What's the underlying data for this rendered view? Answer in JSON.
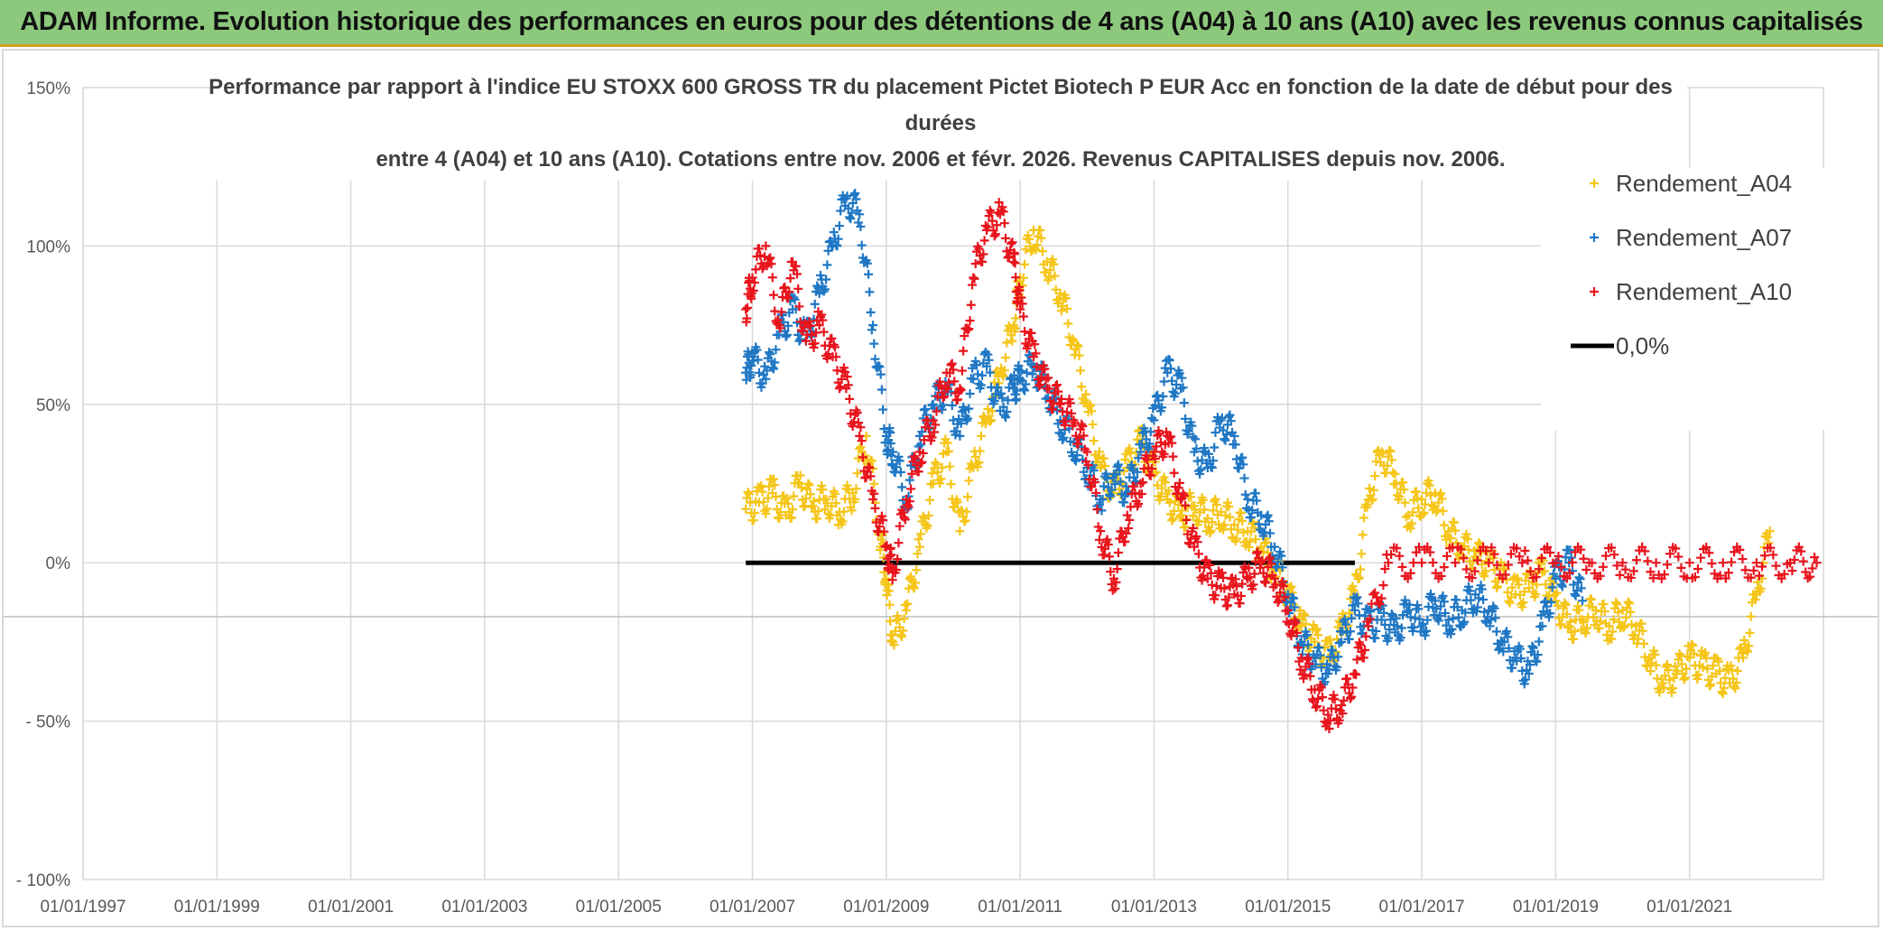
{
  "banner": {
    "title": "ADAM Informe. Evolution historique des performances en euros pour des détentions de 4 ans (A04) à 10 ans (A10) avec les revenus connus capitalisés"
  },
  "chart_data": {
    "type": "scatter",
    "title_lines": [
      "Performance par rapport à l'indice EU STOXX 600 GROSS TR  du placement Pictet Biotech P EUR Acc en fonction de la date de début pour des",
      "durées",
      "entre 4 (A04) et 10 ans (A10). Cotations entre nov. 2006 et févr. 2026. Revenus CAPITALISES depuis nov. 2006."
    ],
    "xlim": [
      1997.0,
      2023.0
    ],
    "ylim": [
      -100,
      150
    ],
    "y_ticks": [
      {
        "value": 150,
        "label": "150%"
      },
      {
        "value": 100,
        "label": "100%"
      },
      {
        "value": 50,
        "label": "50%"
      },
      {
        "value": 0,
        "label": "0%"
      },
      {
        "value": -50,
        "label": "- 50%"
      },
      {
        "value": -100,
        "label": "- 100%"
      }
    ],
    "x_ticks": [
      {
        "value": 1997,
        "label": "01/01/1997"
      },
      {
        "value": 1999,
        "label": "01/01/1999"
      },
      {
        "value": 2001,
        "label": "01/01/2001"
      },
      {
        "value": 2003,
        "label": "01/01/2003"
      },
      {
        "value": 2005,
        "label": "01/01/2005"
      },
      {
        "value": 2007,
        "label": "01/01/2007"
      },
      {
        "value": 2009,
        "label": "01/01/2009"
      },
      {
        "value": 2011,
        "label": "01/01/2011"
      },
      {
        "value": 2013,
        "label": "01/01/2013"
      },
      {
        "value": 2015,
        "label": "01/01/2015"
      },
      {
        "value": 2017,
        "label": "01/01/2017"
      },
      {
        "value": 2019,
        "label": "01/01/2019"
      },
      {
        "value": 2021,
        "label": "01/01/2021"
      }
    ],
    "grid": true,
    "legend_position": "top-right",
    "series": [
      {
        "name": "Rendement_A04",
        "color": "#f5c518",
        "marker": "+",
        "x": [
          2006.9,
          2007.1,
          2007.3,
          2007.5,
          2007.7,
          2007.9,
          2008.1,
          2008.3,
          2008.5,
          2008.7,
          2008.9,
          2009.0,
          2009.1,
          2009.3,
          2009.5,
          2009.7,
          2009.9,
          2010.1,
          2010.3,
          2010.5,
          2010.7,
          2010.9,
          2011.0,
          2011.2,
          2011.4,
          2011.6,
          2011.8,
          2012.0,
          2012.2,
          2012.4,
          2012.6,
          2012.8,
          2013.0,
          2013.2,
          2013.4,
          2013.6,
          2013.8,
          2014.0,
          2014.2,
          2014.4,
          2014.6,
          2014.8,
          2015.0,
          2015.2,
          2015.4,
          2015.6,
          2015.8,
          2016.0,
          2016.2,
          2016.4,
          2016.6,
          2016.8,
          2017.0,
          2017.2,
          2017.4,
          2017.6,
          2017.8,
          2018.0,
          2018.2,
          2018.4,
          2018.6,
          2018.8,
          2019.0,
          2019.2,
          2019.4,
          2019.6,
          2019.8,
          2020.0,
          2020.2,
          2020.4,
          2020.6,
          2020.8,
          2021.0,
          2021.2,
          2021.4,
          2021.6,
          2021.8,
          2022.0,
          2022.2
        ],
        "y": [
          17,
          19,
          22,
          15,
          25,
          18,
          20,
          16,
          22,
          40,
          10,
          -5,
          -25,
          -15,
          5,
          25,
          35,
          10,
          30,
          45,
          60,
          75,
          90,
          105,
          95,
          85,
          70,
          50,
          30,
          22,
          30,
          38,
          28,
          20,
          15,
          18,
          14,
          16,
          12,
          10,
          5,
          -2,
          -10,
          -20,
          -25,
          -30,
          -22,
          -10,
          20,
          35,
          28,
          15,
          20,
          22,
          10,
          5,
          2,
          0,
          -5,
          -10,
          -8,
          -3,
          -12,
          -20,
          -18,
          -15,
          -20,
          -15,
          -20,
          -30,
          -38,
          -35,
          -30,
          -33,
          -35,
          -38,
          -30,
          -10,
          10
        ]
      },
      {
        "name": "Rendement_A07",
        "color": "#1f77c4",
        "marker": "+",
        "x": [
          2006.9,
          2007.0,
          2007.2,
          2007.4,
          2007.6,
          2007.8,
          2008.0,
          2008.2,
          2008.4,
          2008.6,
          2008.8,
          2009.0,
          2009.1,
          2009.3,
          2009.5,
          2009.7,
          2009.9,
          2010.1,
          2010.3,
          2010.5,
          2010.7,
          2010.9,
          2011.0,
          2011.2,
          2011.4,
          2011.6,
          2011.8,
          2012.0,
          2012.2,
          2012.4,
          2012.6,
          2012.8,
          2013.0,
          2013.2,
          2013.4,
          2013.6,
          2013.8,
          2014.0,
          2014.2,
          2014.4,
          2014.6,
          2014.8,
          2015.0,
          2015.2,
          2015.4,
          2015.6,
          2015.8,
          2016.0,
          2016.2,
          2016.4,
          2016.6,
          2016.8,
          2017.0,
          2017.2,
          2017.4,
          2017.6,
          2017.8,
          2018.0,
          2018.2,
          2018.4,
          2018.6,
          2018.8,
          2019.0,
          2019.2,
          2019.4
        ],
        "y": [
          60,
          65,
          58,
          72,
          80,
          70,
          85,
          100,
          115,
          110,
          75,
          40,
          35,
          20,
          40,
          50,
          55,
          40,
          58,
          62,
          48,
          55,
          58,
          62,
          55,
          45,
          38,
          30,
          20,
          28,
          22,
          35,
          45,
          60,
          55,
          35,
          30,
          45,
          40,
          20,
          15,
          5,
          -10,
          -25,
          -30,
          -35,
          -25,
          -15,
          -20,
          -18,
          -22,
          -15,
          -20,
          -12,
          -18,
          -15,
          -10,
          -15,
          -25,
          -30,
          -35,
          -20,
          -5,
          0,
          -12
        ]
      },
      {
        "name": "Rendement_A10",
        "color": "#e8141c",
        "marker": "+",
        "x": [
          2006.9,
          2007.0,
          2007.2,
          2007.4,
          2007.6,
          2007.8,
          2008.0,
          2008.2,
          2008.4,
          2008.6,
          2008.8,
          2009.0,
          2009.1,
          2009.3,
          2009.5,
          2009.7,
          2009.9,
          2010.1,
          2010.3,
          2010.5,
          2010.7,
          2010.9,
          2011.0,
          2011.2,
          2011.4,
          2011.6,
          2011.8,
          2012.0,
          2012.2,
          2012.4,
          2012.6,
          2012.8,
          2013.0,
          2013.2,
          2013.4,
          2013.6,
          2013.8,
          2014.0,
          2014.2,
          2014.4,
          2014.6,
          2014.8,
          2015.0,
          2015.2,
          2015.4,
          2015.6,
          2015.8,
          2016.0,
          2016.2,
          2016.5,
          2017.0,
          2017.5,
          2018.0,
          2018.5,
          2019.0,
          2019.5,
          2020.0,
          2020.5,
          2021.0,
          2021.5,
          2022.0,
          2022.5,
          2022.9
        ],
        "y": [
          80,
          90,
          100,
          75,
          95,
          70,
          75,
          65,
          55,
          40,
          20,
          5,
          -3,
          20,
          35,
          45,
          60,
          55,
          90,
          105,
          110,
          95,
          80,
          65,
          55,
          50,
          45,
          35,
          10,
          -5,
          15,
          25,
          35,
          40,
          20,
          5,
          -5,
          -8,
          -10,
          -5,
          0,
          -5,
          -15,
          -30,
          -40,
          -48,
          -45,
          -35,
          -20,
          0,
          0,
          0,
          0,
          0,
          0,
          0,
          0,
          0,
          0,
          0,
          0,
          0,
          0
        ]
      }
    ],
    "reference_line": {
      "name": "0,0%",
      "color": "#000000",
      "y": 0,
      "x_start": 2006.9,
      "x_end": 2016.0
    }
  }
}
